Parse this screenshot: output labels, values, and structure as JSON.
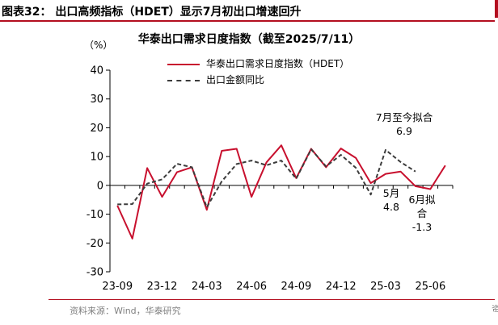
{
  "figure": {
    "caption": "图表32：  出口高频指标（HDET）显示7月初出口增速回升",
    "unit_label": "（%）",
    "source": "资料来源：Wind，华泰研究"
  },
  "chart_data": {
    "type": "line",
    "title": "华泰出口需求日度指数（截至2025/7/11）",
    "xlabel": "",
    "ylabel": "（%）",
    "x": [
      "2023-09",
      "2023-10",
      "2023-11",
      "2023-12",
      "2024-01",
      "2024-02",
      "2024-03",
      "2024-04",
      "2024-05",
      "2024-06",
      "2024-07",
      "2024-08",
      "2024-09",
      "2024-10",
      "2024-11",
      "2024-12",
      "2025-01",
      "2025-02",
      "2025-03",
      "2025-04",
      "2025-05",
      "2025-06",
      "2025-07"
    ],
    "x_ticks": [
      "23-09",
      "23-12",
      "24-03",
      "24-06",
      "24-09",
      "24-12",
      "25-03",
      "25-06"
    ],
    "y_ticks": [
      "40",
      "30",
      "20",
      "10",
      "0",
      "-10",
      "-20",
      "-30"
    ],
    "ylim": [
      -30,
      40
    ],
    "legend_position": "top",
    "grid": false,
    "series": [
      {
        "name": "华泰出口需求日度指数（HDET）",
        "color": "#c8102e",
        "style": "solid",
        "values": [
          -7,
          -18.5,
          6,
          -4,
          4.6,
          6.3,
          -8.5,
          12,
          12.7,
          -4,
          8,
          13.9,
          2.5,
          12.7,
          6.3,
          12.8,
          9.5,
          0.8,
          4,
          4.8,
          -0.3,
          -1.3,
          6.9
        ]
      },
      {
        "name": "出口金额同比",
        "color": "#3c3c3c",
        "style": "dashed",
        "values": [
          -6.6,
          -6.5,
          0.6,
          2.1,
          7.5,
          6.3,
          -7.6,
          1.4,
          7.4,
          8.6,
          7,
          8.6,
          2.3,
          12.5,
          6.6,
          10.6,
          6.1,
          -3.2,
          12.3,
          8.1,
          4.8,
          null,
          null
        ]
      }
    ],
    "annotations": [
      {
        "text_lines": [
          "7月至今拟合",
          "6.9"
        ],
        "x": "2025-07",
        "y": 6.9
      },
      {
        "text_lines": [
          "5月",
          "4.8"
        ],
        "x": "2025-05",
        "y": 4.8
      },
      {
        "text_lines": [
          "6月拟",
          "合",
          "-1.3"
        ],
        "x": "2025-06",
        "y": -1.3
      }
    ]
  }
}
